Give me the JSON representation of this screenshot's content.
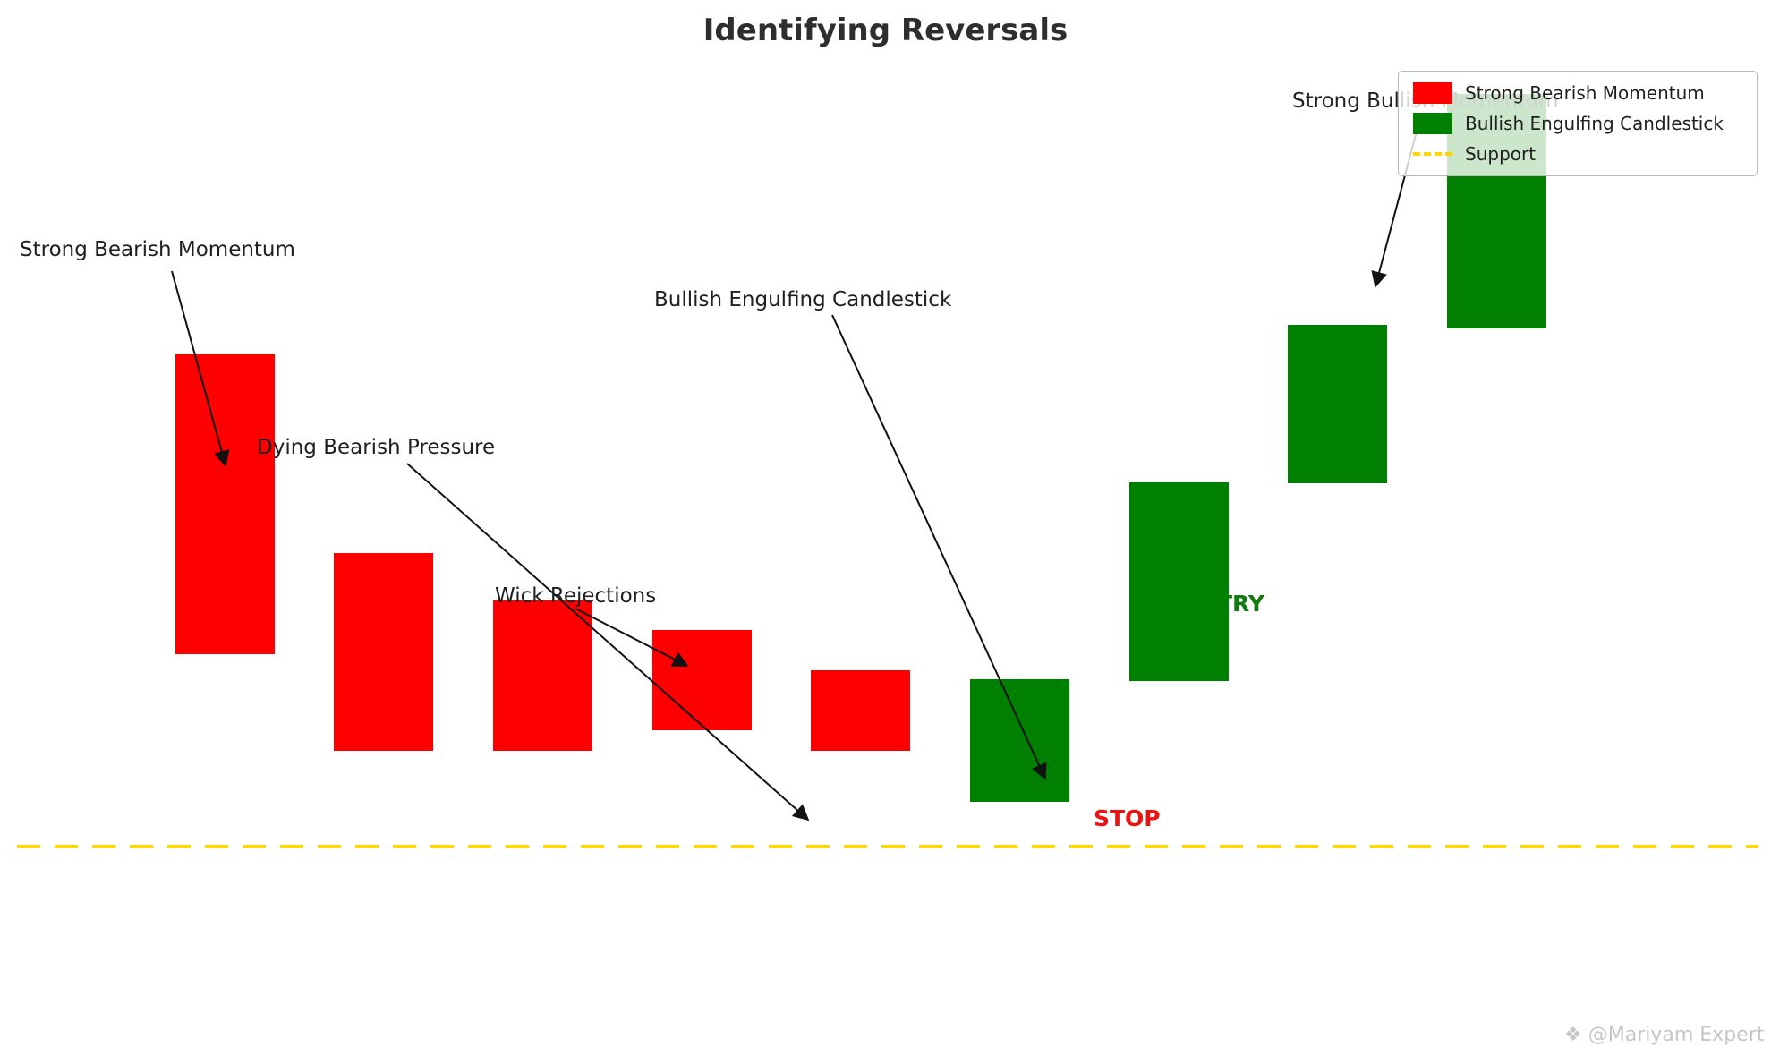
{
  "title": "Identifying Reversals",
  "legend": {
    "items": [
      {
        "label": "Strong Bearish Momentum",
        "color": "#ff0000",
        "marker": "rect"
      },
      {
        "label": "Bullish Engulfing Candlestick",
        "color": "#008000",
        "marker": "rect"
      },
      {
        "label": "Support",
        "color": "#ffd700",
        "marker": "dashed-line"
      }
    ]
  },
  "annotations": {
    "strong_bearish": "Strong Bearish Momentum",
    "dying_pressure": "Dying Bearish Pressure",
    "wick_rejections": "Wick Rejections",
    "bullish_engulfing": "Bullish Engulfing Candlestick",
    "strong_bullish": "Strong Bullish Momentum",
    "stop": "STOP",
    "entry": "ENTRY"
  },
  "watermark": {
    "icon": "sparkle-diamond",
    "text": "@Mariyam Expert"
  },
  "colors": {
    "bearish": "#ff0000",
    "bullish": "#008000",
    "support": "#ffd700",
    "stop": "#ee1111",
    "entry": "#0f7a0f",
    "text": "#1f1f1f",
    "watermark": "#c6c6c6"
  },
  "chart_data": {
    "type": "candlestick",
    "title": "Identifying Reversals",
    "x": [
      1,
      2,
      3,
      4,
      5,
      6,
      7,
      8,
      9
    ],
    "candles": [
      {
        "x": 1,
        "open": 433,
        "close": 170,
        "direction": "bearish"
      },
      {
        "x": 2,
        "open": 259,
        "close": 85,
        "direction": "bearish"
      },
      {
        "x": 3,
        "open": 217,
        "close": 85,
        "direction": "bearish"
      },
      {
        "x": 4,
        "open": 191,
        "close": 103,
        "direction": "bearish"
      },
      {
        "x": 5,
        "open": 156,
        "close": 85,
        "direction": "bearish"
      },
      {
        "x": 6,
        "open": 40,
        "close": 148,
        "direction": "bullish"
      },
      {
        "x": 7,
        "open": 146,
        "close": 321,
        "direction": "bullish"
      },
      {
        "x": 8,
        "open": 320,
        "close": 459,
        "direction": "bullish"
      },
      {
        "x": 9,
        "open": 456,
        "close": 662,
        "direction": "bullish"
      }
    ],
    "support_level": 0,
    "units": "relative-price",
    "ylim": [
      -90,
      700
    ],
    "grid": false,
    "axes_visible": false,
    "legend_position": "upper-right",
    "legend_entries": [
      "Strong Bearish Momentum",
      "Bullish Engulfing Candlestick",
      "Support"
    ],
    "annotations": [
      {
        "text": "Strong Bearish Momentum",
        "points_to": "candle-1"
      },
      {
        "text": "Dying Bearish Pressure",
        "points_to": "shrinking-red-candles-toward-support"
      },
      {
        "text": "Wick Rejections",
        "points_to": "candle-4"
      },
      {
        "text": "Bullish Engulfing Candlestick",
        "points_to": "candle-6"
      },
      {
        "text": "Strong Bullish Momentum",
        "points_to": "candles-8-9"
      },
      {
        "text": "STOP",
        "position": "right-of-candle-6-above-support"
      },
      {
        "text": "ENTRY",
        "position": "at-candle-7"
      }
    ]
  }
}
